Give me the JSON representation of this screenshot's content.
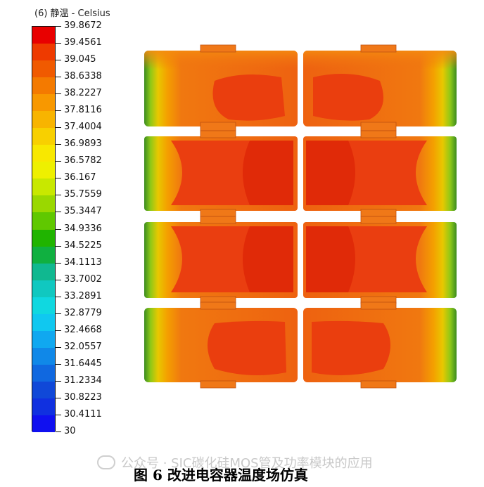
{
  "legend": {
    "title": "(6) 静温 - Celsius",
    "values": [
      "39.8672",
      "39.4561",
      "39.045",
      "38.6338",
      "38.2227",
      "37.8116",
      "37.4004",
      "36.9893",
      "36.5782",
      "36.167",
      "35.7559",
      "35.3447",
      "34.9336",
      "34.5225",
      "34.1113",
      "33.7002",
      "33.2891",
      "32.8779",
      "32.4668",
      "32.0557",
      "31.6445",
      "31.2334",
      "30.8223",
      "30.4111",
      "30"
    ],
    "colors": [
      "#e80000",
      "#ee3a00",
      "#f05a00",
      "#f47a00",
      "#f89800",
      "#f8b400",
      "#f8d000",
      "#f8e800",
      "#eef000",
      "#c8e800",
      "#9ad800",
      "#60c800",
      "#20b400",
      "#10b040",
      "#10b890",
      "#10c8c0",
      "#10d8e0",
      "#10c8f0",
      "#10a8f0",
      "#1088e8",
      "#1068e0",
      "#1048d8",
      "#1030e0",
      "#1010f0"
    ]
  },
  "watermark": "公众号 · SIC碳化硅MOS管及功率模块的应用",
  "caption": "图 6   改进电容器温度场仿真",
  "colors": {
    "hot": "#e42a0c",
    "warm": "#ee4a10",
    "mid": "#f26a10",
    "edge_green": "#5ca820",
    "edge_yellow": "#e8c000"
  },
  "icons": [
    "wechat-icon"
  ]
}
